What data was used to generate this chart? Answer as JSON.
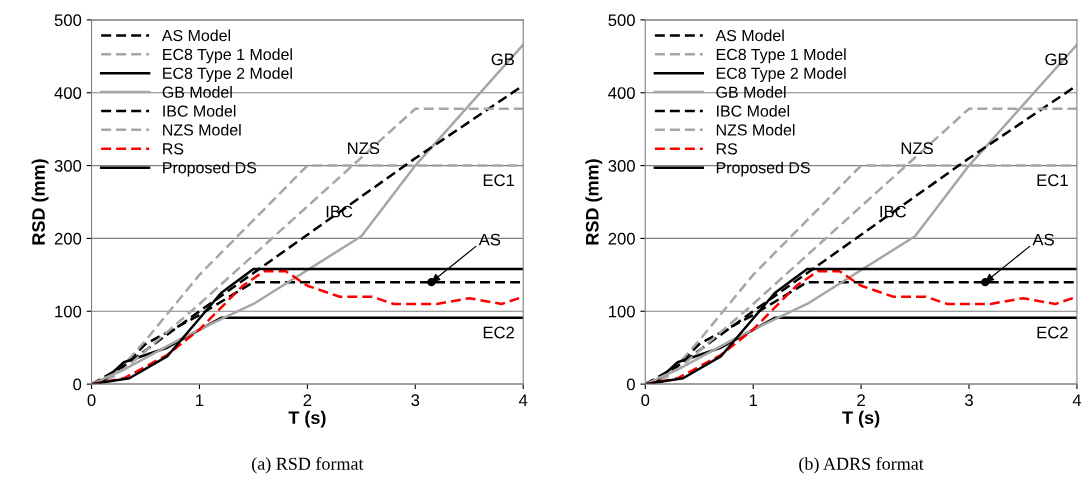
{
  "chart_data": [
    {
      "type": "line",
      "xlabel": "T (s)",
      "ylabel": "RSD (mm)",
      "xlim": [
        0,
        4
      ],
      "ylim": [
        0,
        500
      ],
      "xticks": [
        0,
        1,
        2,
        3,
        4
      ],
      "yticks": [
        0,
        100,
        200,
        300,
        400,
        500
      ],
      "grid": "y",
      "legend": "top left",
      "series": [
        {
          "name": "AS Model",
          "color": "#000000",
          "line_style": "dashed",
          "x": [
            0,
            0.1,
            0.3,
            0.5,
            1.0,
            1.5,
            4
          ],
          "values": [
            0,
            2,
            25,
            55,
            95,
            140,
            140
          ]
        },
        {
          "name": "EC8 Type 1 Model",
          "color": "#a6a6a6",
          "line_style": "dashed",
          "x": [
            0,
            0.2,
            0.5,
            1,
            2,
            4
          ],
          "values": [
            0,
            10,
            60,
            150,
            300,
            300
          ]
        },
        {
          "name": "EC8 Type 2 Model",
          "color": "#000000",
          "line_style": "solid",
          "x": [
            0,
            0.1,
            0.3,
            0.7,
            1.2,
            4
          ],
          "values": [
            0,
            3,
            30,
            50,
            91,
            91
          ]
        },
        {
          "name": "GB Model",
          "color": "#a6a6a6",
          "line_style": "solid",
          "x": [
            0,
            0.3,
            0.8,
            1.0,
            1.5,
            2.5,
            3,
            4
          ],
          "values": [
            0,
            20,
            60,
            75,
            110,
            203,
            300,
            466
          ]
        },
        {
          "name": "IBC Model",
          "color": "#000000",
          "line_style": "dashed",
          "x": [
            0,
            0.3,
            1,
            2,
            3,
            4
          ],
          "values": [
            0,
            25,
            100,
            205,
            310,
            410
          ]
        },
        {
          "name": "NZS Model",
          "color": "#a6a6a6",
          "line_style": "dashed",
          "x": [
            0,
            0.3,
            1,
            3,
            4
          ],
          "values": [
            0,
            20,
            110,
            378,
            378
          ]
        },
        {
          "name": "RS",
          "color": "#ff0000",
          "line_style": "dashed",
          "x": [
            0,
            0.3,
            0.7,
            1,
            1.2,
            1.4,
            1.6,
            1.8,
            2,
            2.3,
            2.6,
            2.8,
            3.2,
            3.5,
            3.8,
            4
          ],
          "values": [
            0,
            8,
            40,
            75,
            105,
            135,
            155,
            155,
            135,
            120,
            120,
            110,
            110,
            118,
            110,
            120
          ]
        },
        {
          "name": "Proposed DS",
          "color": "#000000",
          "line_style": "solid",
          "x": [
            0,
            0.35,
            0.7,
            1,
            1.2,
            1.5,
            4
          ],
          "values": [
            0,
            8,
            38,
            90,
            125,
            158,
            158
          ]
        }
      ],
      "annotations": [
        {
          "text": "GB",
          "x": 4,
          "y": 466
        },
        {
          "text": "NZS",
          "x": 2.75,
          "y": 344
        },
        {
          "text": "IBC",
          "x": 2.5,
          "y": 257
        },
        {
          "text": "EC1",
          "x": 4,
          "y": 300
        },
        {
          "text": "AS",
          "x": 3.15,
          "y": 140
        },
        {
          "text": "EC2",
          "x": 4,
          "y": 91
        },
        "(a) RSD format"
      ]
    },
    {
      "type": "line",
      "xlabel": "T (s)",
      "ylabel": "RSD (mm)",
      "xlim": [
        0,
        4
      ],
      "ylim": [
        0,
        500
      ],
      "xticks": [
        0,
        1,
        2,
        3,
        4
      ],
      "yticks": [
        0,
        100,
        200,
        300,
        400,
        500
      ],
      "grid": "y",
      "legend": "top left",
      "series": [
        {
          "name": "AS Model",
          "color": "#000000",
          "line_style": "dashed",
          "x": [
            0,
            0.1,
            0.3,
            0.5,
            1.0,
            1.5,
            4
          ],
          "values": [
            0,
            2,
            25,
            55,
            95,
            140,
            140
          ]
        },
        {
          "name": "EC8 Type 1 Model",
          "color": "#a6a6a6",
          "line_style": "dashed",
          "x": [
            0,
            0.2,
            0.5,
            1,
            2,
            4
          ],
          "values": [
            0,
            10,
            60,
            150,
            300,
            300
          ]
        },
        {
          "name": "EC8 Type 2 Model",
          "color": "#000000",
          "line_style": "solid",
          "x": [
            0,
            0.1,
            0.3,
            0.7,
            1.2,
            4
          ],
          "values": [
            0,
            3,
            30,
            50,
            91,
            91
          ]
        },
        {
          "name": "GB Model",
          "color": "#a6a6a6",
          "line_style": "solid",
          "x": [
            0,
            0.3,
            0.8,
            1.0,
            1.5,
            2.5,
            3,
            4
          ],
          "values": [
            0,
            20,
            60,
            75,
            110,
            203,
            300,
            466
          ]
        },
        {
          "name": "IBC Model",
          "color": "#000000",
          "line_style": "dashed",
          "x": [
            0,
            0.3,
            1,
            2,
            3,
            4
          ],
          "values": [
            0,
            25,
            100,
            205,
            310,
            410
          ]
        },
        {
          "name": "NZS Model",
          "color": "#a6a6a6",
          "line_style": "dashed",
          "x": [
            0,
            0.3,
            1,
            3,
            4
          ],
          "values": [
            0,
            20,
            110,
            378,
            378
          ]
        },
        {
          "name": "RS",
          "color": "#ff0000",
          "line_style": "dashed",
          "x": [
            0,
            0.3,
            0.7,
            1,
            1.2,
            1.4,
            1.6,
            1.8,
            2,
            2.3,
            2.6,
            2.8,
            3.2,
            3.5,
            3.8,
            4
          ],
          "values": [
            0,
            8,
            40,
            75,
            105,
            135,
            155,
            155,
            135,
            120,
            120,
            110,
            110,
            118,
            110,
            120
          ]
        },
        {
          "name": "Proposed DS",
          "color": "#000000",
          "line_style": "solid",
          "x": [
            0,
            0.35,
            0.7,
            1,
            1.2,
            1.5,
            4
          ],
          "values": [
            0,
            8,
            38,
            90,
            125,
            158,
            158
          ]
        }
      ],
      "annotations": [
        {
          "text": "GB",
          "x": 4,
          "y": 466
        },
        {
          "text": "NZS",
          "x": 2.75,
          "y": 344
        },
        {
          "text": "IBC",
          "x": 2.5,
          "y": 257
        },
        {
          "text": "EC1",
          "x": 4,
          "y": 300
        },
        {
          "text": "AS",
          "x": 3.15,
          "y": 140
        },
        {
          "text": "EC2",
          "x": 4,
          "y": 91
        },
        "(b) ADRS format"
      ]
    }
  ]
}
